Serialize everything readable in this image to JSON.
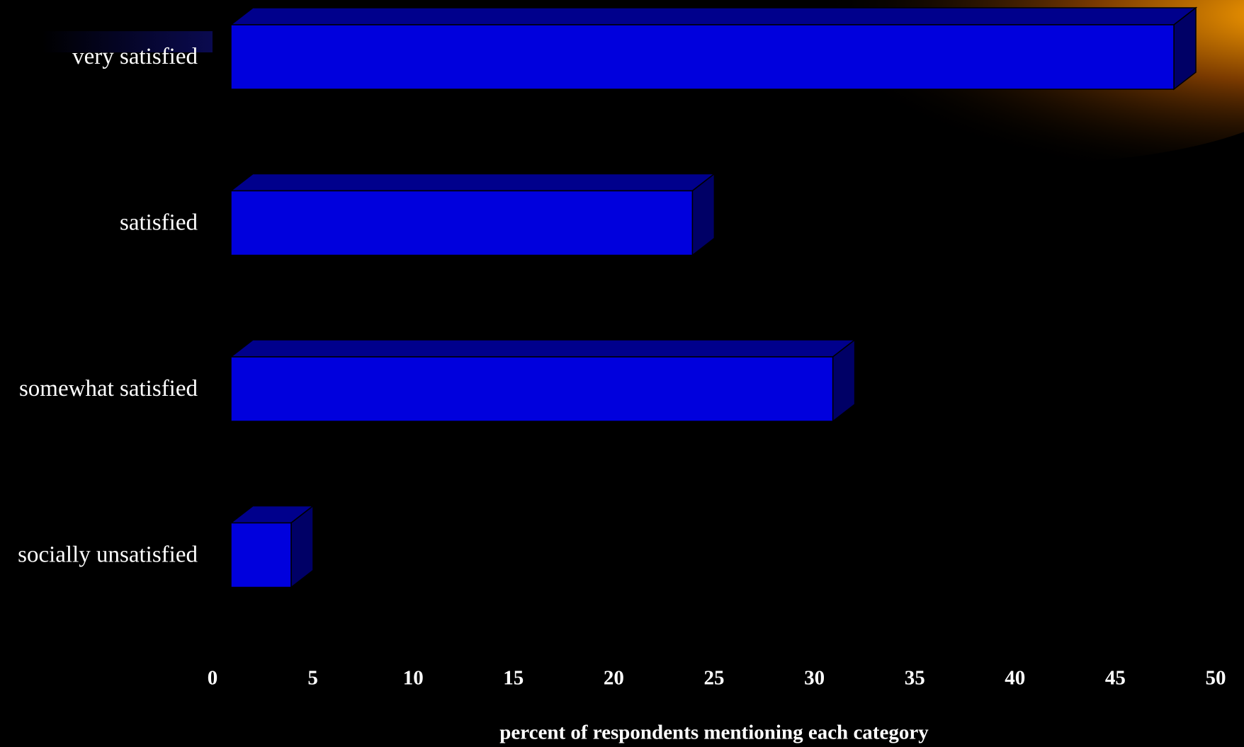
{
  "chart_data": {
    "type": "bar",
    "orientation": "horizontal",
    "categories": [
      "very satisfied",
      "satisfied",
      "somewhat satisfied",
      "socially unsatisfied"
    ],
    "values": [
      47,
      23,
      30,
      3
    ],
    "color": "#0000dd",
    "xlabel": "percent of respondents mentioning each category",
    "xlim": [
      0,
      50
    ],
    "xticks": [
      0,
      5,
      10,
      15,
      20,
      25,
      30,
      35,
      40,
      45,
      50
    ],
    "grid": false
  }
}
